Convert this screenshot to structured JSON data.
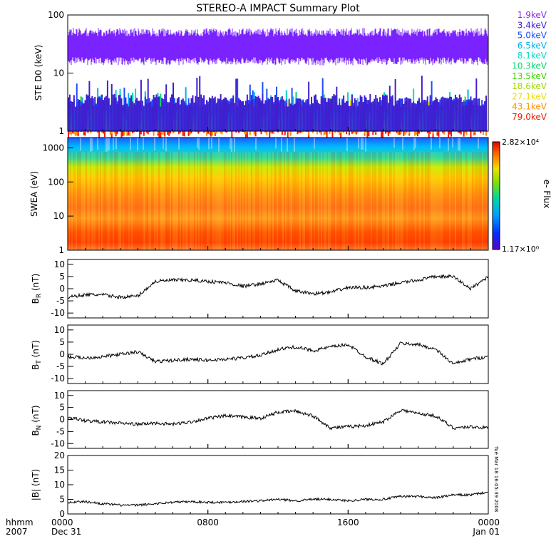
{
  "title": "STEREO-A IMPACT Summary Plot",
  "colors": {
    "ste_primary": "#7a22ff",
    "ste_blue": "#1c2bff",
    "ste_cyan": "#00c8c8",
    "mag_line": "#000000"
  },
  "chart_data": [
    {
      "type": "line",
      "panel": "ste",
      "ylabel": "STE D0 (keV)",
      "yscale": "log",
      "ylim": [
        1,
        100
      ],
      "y_ticks": [
        "1",
        "10",
        "100"
      ],
      "legend": [
        {
          "label": "1.9keV",
          "color": "#8a2be2"
        },
        {
          "label": "3.4keV",
          "color": "#3f1fd0"
        },
        {
          "label": "5.0keV",
          "color": "#1e4cff"
        },
        {
          "label": "6.5keV",
          "color": "#00b0f0"
        },
        {
          "label": "8.1keV",
          "color": "#00d8c8"
        },
        {
          "label": "10.3keV",
          "color": "#00d870"
        },
        {
          "label": "13.5keV",
          "color": "#40d000"
        },
        {
          "label": "18.6keV",
          "color": "#a0d800"
        },
        {
          "label": "27.1keV",
          "color": "#e8e000"
        },
        {
          "label": "43.1keV",
          "color": "#ff9000"
        },
        {
          "label": "79.0keV",
          "color": "#ee2000"
        }
      ],
      "series": [
        {
          "name": "1.9keV",
          "level": 34
        },
        {
          "name": "3.4keV",
          "level": 3.5
        },
        {
          "name": "5.0keV",
          "level": 3.0
        },
        {
          "name": "6.5keV",
          "level": 2.2
        },
        {
          "name": "8.1keV",
          "level": 2.0
        },
        {
          "name": "10.3keV",
          "level": 1.8
        },
        {
          "name": "13.5keV",
          "level": 1.6
        },
        {
          "name": "18.6keV",
          "level": 1.4
        },
        {
          "name": "27.1keV",
          "level": 1.25
        },
        {
          "name": "43.1keV",
          "level": 1.1
        },
        {
          "name": "79.0keV",
          "level": 1.0
        }
      ]
    },
    {
      "type": "heatmap",
      "panel": "swea",
      "ylabel": "SWEA (eV)",
      "yscale": "log",
      "ylim": [
        1,
        2000
      ],
      "y_ticks": [
        "1",
        "10",
        "100",
        "1000"
      ],
      "colorbar": {
        "max_label": "2.82×10⁴",
        "min_label": "1.17×10⁰",
        "label": "e- Flux"
      }
    },
    {
      "type": "line",
      "panel": "br",
      "ylabel": "B_R (nT)",
      "ylim": [
        -12,
        12
      ],
      "y_ticks": [
        "10",
        "5",
        "0",
        "-5",
        "-10"
      ],
      "x": [
        0,
        1,
        2,
        3,
        4,
        5,
        6,
        7,
        8,
        9,
        10,
        11,
        12,
        13,
        14,
        15,
        16,
        17,
        18,
        19,
        20,
        21,
        22,
        23,
        24
      ],
      "values": [
        -3.5,
        -2.5,
        -2.5,
        -3.5,
        -3.0,
        3.0,
        3.5,
        3.5,
        3.0,
        2.5,
        1.0,
        2.0,
        3.5,
        -1.0,
        -2.0,
        -1.5,
        0.5,
        0.5,
        1.0,
        2.5,
        3.5,
        5.0,
        5.0,
        0.0,
        5.0
      ]
    },
    {
      "type": "line",
      "panel": "bt",
      "ylabel": "B_T (nT)",
      "ylim": [
        -12,
        12
      ],
      "y_ticks": [
        "10",
        "5",
        "0",
        "-5",
        "-10"
      ],
      "x": [
        0,
        1,
        2,
        3,
        4,
        5,
        6,
        7,
        8,
        9,
        10,
        11,
        12,
        13,
        14,
        15,
        16,
        17,
        18,
        19,
        20,
        21,
        22,
        23,
        24
      ],
      "values": [
        -1.0,
        -1.5,
        -1.0,
        0.0,
        1.0,
        -3.0,
        -2.5,
        -2.0,
        -2.5,
        -2.0,
        -1.5,
        -0.5,
        2.0,
        3.0,
        1.5,
        3.0,
        4.0,
        -1.0,
        -4.0,
        4.5,
        4.0,
        2.0,
        -4.0,
        -2.0,
        -1.0
      ]
    },
    {
      "type": "line",
      "panel": "bn",
      "ylabel": "B_N (nT)",
      "ylim": [
        -12,
        12
      ],
      "y_ticks": [
        "10",
        "5",
        "0",
        "-5",
        "-10"
      ],
      "x": [
        0,
        1,
        2,
        3,
        4,
        5,
        6,
        7,
        8,
        9,
        10,
        11,
        12,
        13,
        14,
        15,
        16,
        17,
        18,
        19,
        20,
        21,
        22,
        23,
        24
      ],
      "values": [
        1.0,
        -0.5,
        -1.0,
        -1.5,
        -2.0,
        -1.5,
        -2.0,
        -1.0,
        0.5,
        1.5,
        1.0,
        0.5,
        3.0,
        3.5,
        1.5,
        -3.5,
        -3.0,
        -2.5,
        -1.0,
        4.0,
        2.5,
        1.5,
        -3.5,
        -3.0,
        -3.5
      ]
    },
    {
      "type": "line",
      "panel": "bmag",
      "ylabel": "|B| (nT)",
      "ylim": [
        0,
        20
      ],
      "y_ticks": [
        "20",
        "15",
        "10",
        "5",
        "0"
      ],
      "x": [
        0,
        1,
        2,
        3,
        4,
        5,
        6,
        7,
        8,
        9,
        10,
        11,
        12,
        13,
        14,
        15,
        16,
        17,
        18,
        19,
        20,
        21,
        22,
        23,
        24
      ],
      "values": [
        4.0,
        4.2,
        3.5,
        3.0,
        3.0,
        3.5,
        4.0,
        4.2,
        4.0,
        4.0,
        4.3,
        4.5,
        5.0,
        4.5,
        5.0,
        5.0,
        4.5,
        5.0,
        5.0,
        6.0,
        6.0,
        5.5,
        6.5,
        6.5,
        7.5
      ]
    }
  ],
  "x_axis": {
    "row1_label": "hhmm",
    "row2_label": "2007",
    "ticks": [
      {
        "time": "0000",
        "date": "Dec 31",
        "hour": 0
      },
      {
        "time": "0800",
        "date": "",
        "hour": 8
      },
      {
        "time": "1600",
        "date": "",
        "hour": 16
      },
      {
        "time": "0000",
        "date": "Jan 01",
        "hour": 24
      }
    ]
  },
  "timestamp": "Tue Mar 18 16:05:39 2008"
}
